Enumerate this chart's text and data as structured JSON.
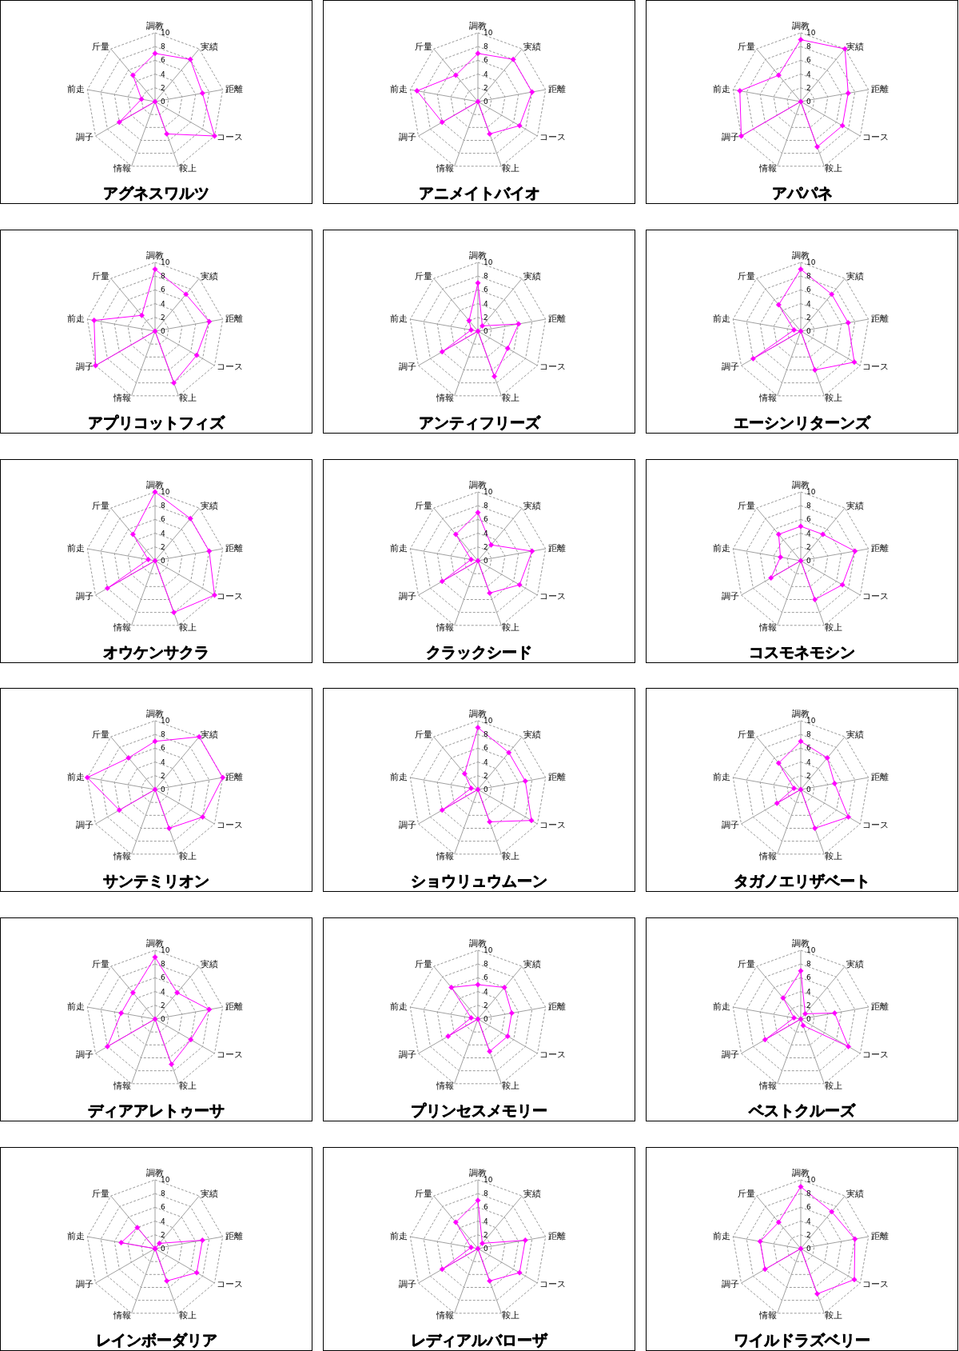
{
  "chart_data": [
    {
      "type": "radar",
      "title": "アグネスワルツ",
      "categories": [
        "調教",
        "実績",
        "距離",
        "コース",
        "鞍上",
        "情報",
        "調子",
        "前走",
        "斤量"
      ],
      "series": [
        {
          "color": "#ff00ff",
          "values": [
            7,
            8,
            7,
            10,
            5,
            0,
            6,
            2,
            5
          ]
        }
      ],
      "ylim": [
        0,
        10
      ],
      "yticks": [
        0,
        2,
        4,
        6,
        8,
        10
      ],
      "grid": true,
      "marker": "diamond"
    },
    {
      "type": "radar",
      "title": "アニメイトバイオ",
      "categories": [
        "調教",
        "実績",
        "距離",
        "コース",
        "鞍上",
        "情報",
        "調子",
        "前走",
        "斤量"
      ],
      "series": [
        {
          "color": "#ff00ff",
          "values": [
            7,
            8,
            8,
            7,
            5,
            0,
            6,
            9,
            5
          ]
        }
      ],
      "ylim": [
        0,
        10
      ],
      "yticks": [
        0,
        2,
        4,
        6,
        8,
        10
      ],
      "grid": true,
      "marker": "diamond"
    },
    {
      "type": "radar",
      "title": "アパパネ",
      "categories": [
        "調教",
        "実績",
        "距離",
        "コース",
        "鞍上",
        "情報",
        "調子",
        "前走",
        "斤量"
      ],
      "series": [
        {
          "color": "#ff00ff",
          "values": [
            9,
            10,
            7,
            7,
            7,
            0,
            10,
            9,
            5
          ]
        }
      ],
      "ylim": [
        0,
        10
      ],
      "yticks": [
        0,
        2,
        4,
        6,
        8,
        10
      ],
      "grid": true,
      "marker": "diamond"
    },
    {
      "type": "radar",
      "title": "アプリコットフィズ",
      "categories": [
        "調教",
        "実績",
        "距離",
        "コース",
        "鞍上",
        "情報",
        "調子",
        "前走",
        "斤量"
      ],
      "series": [
        {
          "color": "#ff00ff",
          "values": [
            9,
            7,
            8,
            7,
            8,
            0,
            10,
            9,
            3
          ]
        }
      ],
      "ylim": [
        0,
        10
      ],
      "yticks": [
        0,
        2,
        4,
        6,
        8,
        10
      ],
      "grid": true,
      "marker": "diamond"
    },
    {
      "type": "radar",
      "title": "アンティフリーズ",
      "categories": [
        "調教",
        "実績",
        "距離",
        "コース",
        "鞍上",
        "情報",
        "調子",
        "前走",
        "斤量"
      ],
      "series": [
        {
          "color": "#ff00ff",
          "values": [
            7,
            1,
            6,
            5,
            7,
            0,
            6,
            1,
            2
          ]
        }
      ],
      "ylim": [
        0,
        10
      ],
      "yticks": [
        0,
        2,
        4,
        6,
        8,
        10
      ],
      "grid": true,
      "marker": "diamond"
    },
    {
      "type": "radar",
      "title": "エーシンリターンズ",
      "categories": [
        "調教",
        "実績",
        "距離",
        "コース",
        "鞍上",
        "情報",
        "調子",
        "前走",
        "斤量"
      ],
      "series": [
        {
          "color": "#ff00ff",
          "values": [
            9,
            7,
            7,
            9,
            6,
            0,
            8,
            1,
            5
          ]
        }
      ],
      "ylim": [
        0,
        10
      ],
      "yticks": [
        0,
        2,
        4,
        6,
        8,
        10
      ],
      "grid": true,
      "marker": "diamond"
    },
    {
      "type": "radar",
      "title": "オウケンサクラ",
      "categories": [
        "調教",
        "実績",
        "距離",
        "コース",
        "鞍上",
        "情報",
        "調子",
        "前走",
        "斤量"
      ],
      "series": [
        {
          "color": "#ff00ff",
          "values": [
            10,
            8,
            8,
            10,
            8,
            0,
            8,
            1,
            5
          ]
        }
      ],
      "ylim": [
        0,
        10
      ],
      "yticks": [
        0,
        2,
        4,
        6,
        8,
        10
      ],
      "grid": true,
      "marker": "diamond"
    },
    {
      "type": "radar",
      "title": "クラックシード",
      "categories": [
        "調教",
        "実績",
        "距離",
        "コース",
        "鞍上",
        "情報",
        "調子",
        "前走",
        "斤量"
      ],
      "series": [
        {
          "color": "#ff00ff",
          "values": [
            7,
            3,
            8,
            7,
            5,
            0,
            6,
            1,
            5
          ]
        }
      ],
      "ylim": [
        0,
        10
      ],
      "yticks": [
        0,
        2,
        4,
        6,
        8,
        10
      ],
      "grid": true,
      "marker": "diamond"
    },
    {
      "type": "radar",
      "title": "コスモネモシン",
      "categories": [
        "調教",
        "実績",
        "距離",
        "コース",
        "鞍上",
        "情報",
        "調子",
        "前走",
        "斤量"
      ],
      "series": [
        {
          "color": "#ff00ff",
          "values": [
            5,
            5,
            8,
            7,
            6,
            0,
            5,
            3,
            5
          ]
        }
      ],
      "ylim": [
        0,
        10
      ],
      "yticks": [
        0,
        2,
        4,
        6,
        8,
        10
      ],
      "grid": true,
      "marker": "diamond"
    },
    {
      "type": "radar",
      "title": "サンテミリオン",
      "categories": [
        "調教",
        "実績",
        "距離",
        "コース",
        "鞍上",
        "情報",
        "調子",
        "前走",
        "斤量"
      ],
      "series": [
        {
          "color": "#ff00ff",
          "values": [
            7,
            10,
            10,
            8,
            6,
            0,
            6,
            10,
            6
          ]
        }
      ],
      "ylim": [
        0,
        10
      ],
      "yticks": [
        0,
        2,
        4,
        6,
        8,
        10
      ],
      "grid": true,
      "marker": "diamond"
    },
    {
      "type": "radar",
      "title": "ショウリュウムーン",
      "categories": [
        "調教",
        "実績",
        "距離",
        "コース",
        "鞍上",
        "情報",
        "調子",
        "前走",
        "斤量"
      ],
      "series": [
        {
          "color": "#ff00ff",
          "values": [
            9,
            7,
            7,
            9,
            5,
            0,
            6,
            1,
            3
          ]
        }
      ],
      "ylim": [
        0,
        10
      ],
      "yticks": [
        0,
        2,
        4,
        6,
        8,
        10
      ],
      "grid": true,
      "marker": "diamond"
    },
    {
      "type": "radar",
      "title": "タガノエリザベート",
      "categories": [
        "調教",
        "実績",
        "距離",
        "コース",
        "鞍上",
        "情報",
        "調子",
        "前走",
        "斤量"
      ],
      "series": [
        {
          "color": "#ff00ff",
          "values": [
            7,
            6,
            5,
            8,
            6,
            0,
            4,
            1,
            5
          ]
        }
      ],
      "ylim": [
        0,
        10
      ],
      "yticks": [
        0,
        2,
        4,
        6,
        8,
        10
      ],
      "grid": true,
      "marker": "diamond"
    },
    {
      "type": "radar",
      "title": "ディアアレトゥーサ",
      "categories": [
        "調教",
        "実績",
        "距離",
        "コース",
        "鞍上",
        "情報",
        "調子",
        "前走",
        "斤量"
      ],
      "series": [
        {
          "color": "#ff00ff",
          "values": [
            9,
            5,
            8,
            6,
            7,
            0,
            8,
            5,
            5
          ]
        }
      ],
      "ylim": [
        0,
        10
      ],
      "yticks": [
        0,
        2,
        4,
        6,
        8,
        10
      ],
      "grid": true,
      "marker": "diamond"
    },
    {
      "type": "radar",
      "title": "プリンセスメモリー",
      "categories": [
        "調教",
        "実績",
        "距離",
        "コース",
        "鞍上",
        "情報",
        "調子",
        "前走",
        "斤量"
      ],
      "series": [
        {
          "color": "#ff00ff",
          "values": [
            5,
            6,
            5,
            5,
            5,
            0,
            5,
            1,
            6
          ]
        }
      ],
      "ylim": [
        0,
        10
      ],
      "yticks": [
        0,
        2,
        4,
        6,
        8,
        10
      ],
      "grid": true,
      "marker": "diamond"
    },
    {
      "type": "radar",
      "title": "ベストクルーズ",
      "categories": [
        "調教",
        "実績",
        "距離",
        "コース",
        "鞍上",
        "情報",
        "調子",
        "前走",
        "斤量"
      ],
      "series": [
        {
          "color": "#ff00ff",
          "values": [
            7,
            1,
            5,
            8,
            1,
            0,
            6,
            1,
            4
          ]
        }
      ],
      "ylim": [
        0,
        10
      ],
      "yticks": [
        0,
        2,
        4,
        6,
        8,
        10
      ],
      "grid": true,
      "marker": "diamond"
    },
    {
      "type": "radar",
      "title": "レインボーダリア",
      "categories": [
        "調教",
        "実績",
        "距離",
        "コース",
        "鞍上",
        "情報",
        "調子",
        "前走",
        "斤量"
      ],
      "series": [
        {
          "color": "#ff00ff",
          "values": [
            0,
            1,
            7,
            7,
            5,
            0,
            0,
            5,
            4
          ]
        }
      ],
      "ylim": [
        0,
        10
      ],
      "yticks": [
        0,
        2,
        4,
        6,
        8,
        10
      ],
      "grid": true,
      "marker": "diamond"
    },
    {
      "type": "radar",
      "title": "レディアルバローザ",
      "categories": [
        "調教",
        "実績",
        "距離",
        "コース",
        "鞍上",
        "情報",
        "調子",
        "前走",
        "斤量"
      ],
      "series": [
        {
          "color": "#ff00ff",
          "values": [
            7,
            1,
            7,
            7,
            5,
            0,
            6,
            1,
            5
          ]
        }
      ],
      "ylim": [
        0,
        10
      ],
      "yticks": [
        0,
        2,
        4,
        6,
        8,
        10
      ],
      "grid": true,
      "marker": "diamond"
    },
    {
      "type": "radar",
      "title": "ワイルドラズベリー",
      "categories": [
        "調教",
        "実績",
        "距離",
        "コース",
        "鞍上",
        "情報",
        "調子",
        "前走",
        "斤量"
      ],
      "series": [
        {
          "color": "#ff00ff",
          "values": [
            9,
            7,
            8,
            9,
            7,
            0,
            6,
            6,
            5
          ]
        }
      ],
      "ylim": [
        0,
        10
      ],
      "yticks": [
        0,
        2,
        4,
        6,
        8,
        10
      ],
      "grid": true,
      "marker": "diamond"
    }
  ]
}
